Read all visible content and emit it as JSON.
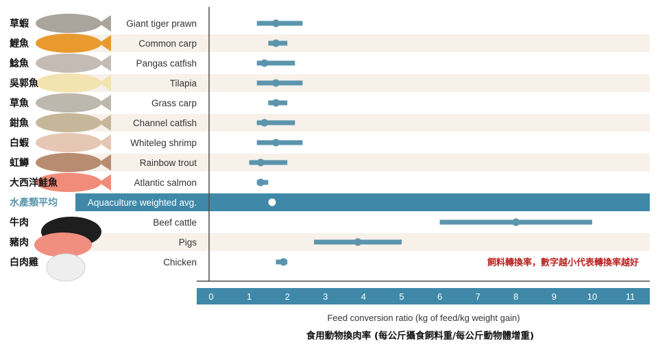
{
  "chart_data": {
    "type": "range-dot",
    "xlabel": "Feed conversion ratio (kg of feed/kg weight gain)",
    "xlabel_zh": "食用動物換肉率 (每公斤攝食飼料重/每公斤動物體增重)",
    "annotation": "飼料轉換率，數字越小代表轉換率越好",
    "xlim": [
      0,
      11.5
    ],
    "ticks": [
      0,
      1,
      2,
      3,
      4,
      5,
      6,
      7,
      8,
      9,
      10,
      11
    ],
    "rows": [
      {
        "label": "Giant tiger prawn",
        "label_zh": "草蝦",
        "low": 1.2,
        "high": 2.4,
        "mean": 1.7,
        "highlight": false,
        "icon": "shrimp-icon",
        "icon_color": "#a9a49c"
      },
      {
        "label": "Common carp",
        "label_zh": "鯉魚",
        "low": 1.5,
        "high": 2.0,
        "mean": 1.7,
        "highlight": false,
        "icon": "carp-icon",
        "icon_color": "#e99a2e"
      },
      {
        "label": "Pangas catfish",
        "label_zh": "鯰魚",
        "low": 1.2,
        "high": 2.2,
        "mean": 1.4,
        "highlight": false,
        "icon": "catfish-icon",
        "icon_color": "#c4bcb4"
      },
      {
        "label": "Tilapia",
        "label_zh": "吳郭魚",
        "low": 1.2,
        "high": 2.4,
        "mean": 1.7,
        "highlight": false,
        "icon": "tilapia-icon",
        "icon_color": "#f2e3b0"
      },
      {
        "label": "Grass carp",
        "label_zh": "草魚",
        "low": 1.5,
        "high": 2.0,
        "mean": 1.7,
        "highlight": false,
        "icon": "fish-icon",
        "icon_color": "#bdb8ae"
      },
      {
        "label": "Channel catfish",
        "label_zh": "鉗魚",
        "low": 1.2,
        "high": 2.2,
        "mean": 1.4,
        "highlight": false,
        "icon": "catfish-icon",
        "icon_color": "#c7b79a"
      },
      {
        "label": "Whiteleg shrimp",
        "label_zh": "白蝦",
        "low": 1.2,
        "high": 2.4,
        "mean": 1.7,
        "highlight": false,
        "icon": "shrimp-icon",
        "icon_color": "#e6c6b4"
      },
      {
        "label": "Rainbow trout",
        "label_zh": "虹鱒",
        "low": 1.0,
        "high": 2.0,
        "mean": 1.3,
        "highlight": false,
        "icon": "trout-icon",
        "icon_color": "#b88c70"
      },
      {
        "label": "Atlantic salmon",
        "label_zh": "大西洋鮭魚",
        "low": 1.2,
        "high": 1.5,
        "mean": 1.3,
        "highlight": false,
        "icon": "salmon-icon",
        "icon_color": "#f18c7a"
      },
      {
        "label": "Aquaculture weighted avg.",
        "label_zh": "水產類平均",
        "low": null,
        "high": null,
        "mean": 1.6,
        "highlight": true,
        "icon": "",
        "icon_color": ""
      },
      {
        "label": "Beef cattle",
        "label_zh": "牛肉",
        "low": 6.0,
        "high": 10.0,
        "mean": 8.0,
        "highlight": false,
        "icon": "cow-icon",
        "icon_color": "#1e1e1e"
      },
      {
        "label": "Pigs",
        "label_zh": "豬肉",
        "low": 2.7,
        "high": 5.0,
        "mean": 3.85,
        "highlight": false,
        "icon": "pig-icon",
        "icon_color": "#f08f7f"
      },
      {
        "label": "Chicken",
        "label_zh": "白肉雞",
        "low": 1.7,
        "high": 2.0,
        "mean": 1.9,
        "highlight": false,
        "icon": "chicken-icon",
        "icon_color": "#eeeeee"
      }
    ],
    "colors": {
      "series": "#5b95ad",
      "highlight_band": "#3f88a8",
      "axis_band": "#3f88a8",
      "stripe": "#f7f1ea",
      "annotation": "#b8211f",
      "zh_highlight": "#5b95ad"
    },
    "grid": false
  }
}
